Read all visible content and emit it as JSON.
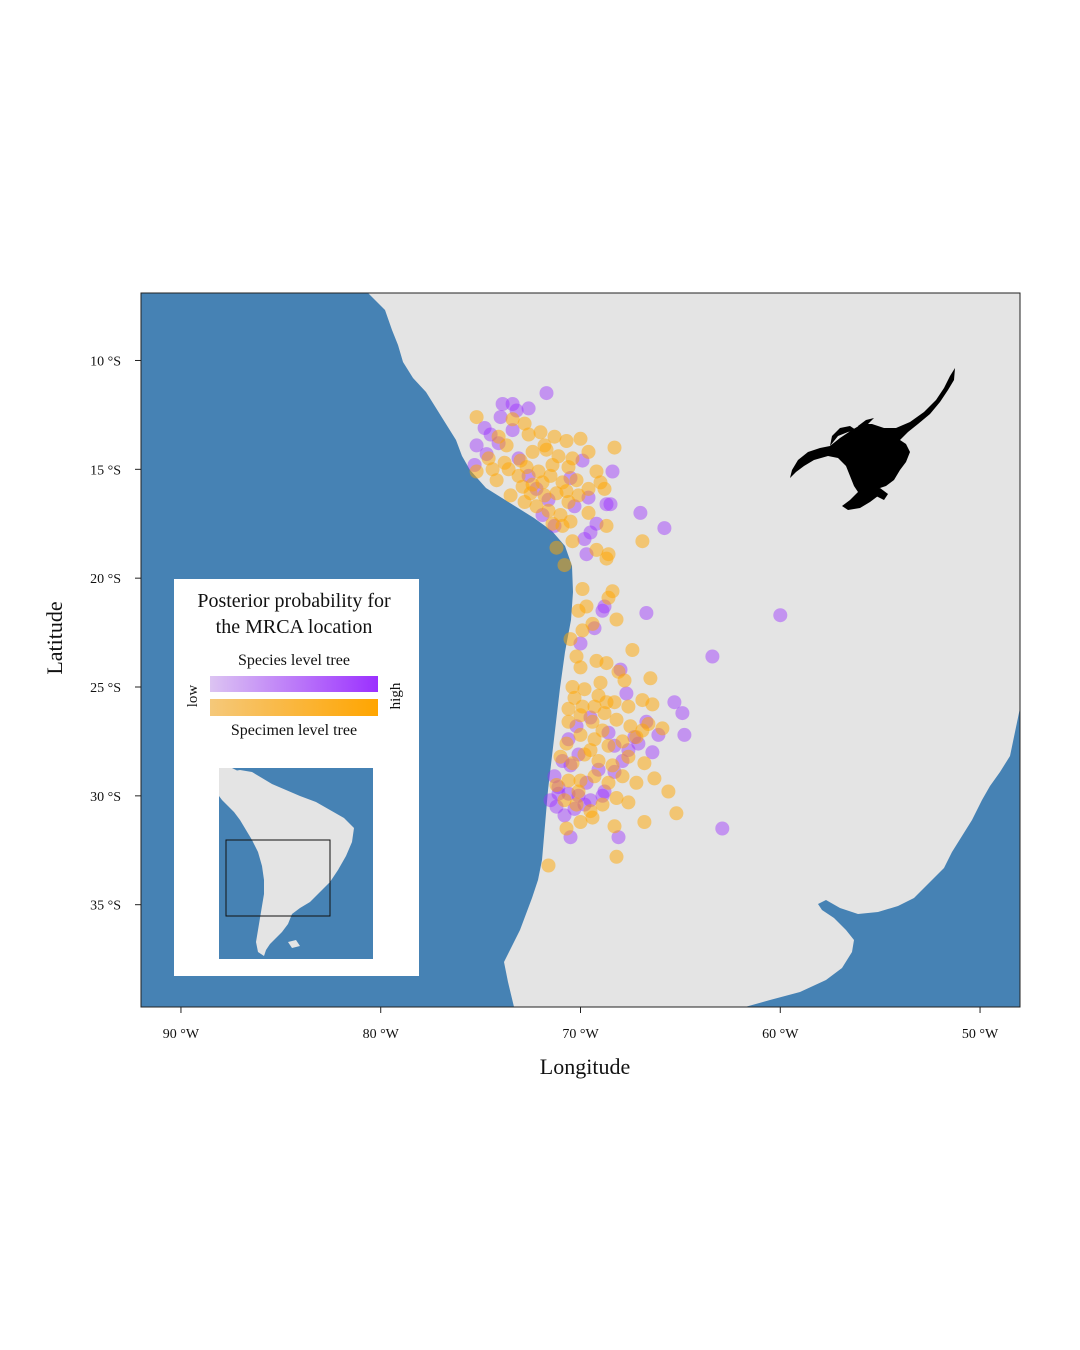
{
  "chart_data": {
    "type": "scatter",
    "title": "",
    "xlabel": "Longitude",
    "ylabel": "Latitude",
    "xlim": [
      -92,
      -48
    ],
    "ylim": [
      -39.7,
      -6.9
    ],
    "x_ticks": [
      -90,
      -80,
      -70,
      -60,
      -50
    ],
    "x_tick_labels": [
      "90 °W",
      "80 °W",
      "70 °W",
      "60 °W",
      "50 °W"
    ],
    "y_ticks": [
      -10,
      -15,
      -20,
      -25,
      -30,
      -35
    ],
    "y_tick_labels": [
      "10 °S",
      "15 °S",
      "20 °S",
      "25 °S",
      "30 °S",
      "35 °S"
    ],
    "grid": false,
    "colors": {
      "ocean": "#4682b4",
      "land": "#e4e4e4",
      "species_low": "#dcc4f2",
      "species_high": "#9b30ff",
      "specimen_low": "#f5c87a",
      "specimen_high": "#ffa500"
    },
    "legend": {
      "position": "bottom-left",
      "title_line1": "Posterior probability for",
      "title_line2": "the MRCA location",
      "species_label": "Species level tree",
      "specimen_label": "Specimen level tree",
      "low_label": "low",
      "high_label": "high"
    },
    "inset": {
      "label": "South America overview",
      "extent_box": {
        "lon": [
          -92,
          -48
        ],
        "lat": [
          -39.7,
          -6.9
        ]
      }
    },
    "silhouette": {
      "icon": "scorpion-icon",
      "color": "#000000"
    },
    "series": [
      {
        "name": "Species level tree",
        "color": "#9b30ff",
        "points": [
          [
            -71.7,
            -11.5
          ],
          [
            -73.4,
            -12.0
          ],
          [
            -73.9,
            -12.0
          ],
          [
            -72.6,
            -12.2
          ],
          [
            -74.8,
            -13.1
          ],
          [
            -74.5,
            -13.4
          ],
          [
            -74.0,
            -12.6
          ],
          [
            -73.2,
            -12.3
          ],
          [
            -75.2,
            -13.9
          ],
          [
            -74.7,
            -14.3
          ],
          [
            -75.3,
            -14.8
          ],
          [
            -73.4,
            -13.2
          ],
          [
            -74.1,
            -13.8
          ],
          [
            -73.1,
            -14.5
          ],
          [
            -72.6,
            -15.3
          ],
          [
            -72.2,
            -15.9
          ],
          [
            -71.6,
            -16.4
          ],
          [
            -71.9,
            -17.1
          ],
          [
            -71.3,
            -17.6
          ],
          [
            -70.5,
            -15.4
          ],
          [
            -70.3,
            -16.7
          ],
          [
            -69.9,
            -14.6
          ],
          [
            -68.7,
            -16.6
          ],
          [
            -69.2,
            -17.5
          ],
          [
            -69.8,
            -18.2
          ],
          [
            -69.5,
            -17.9
          ],
          [
            -69.7,
            -18.9
          ],
          [
            -68.4,
            -15.1
          ],
          [
            -68.5,
            -16.6
          ],
          [
            -69.6,
            -16.3
          ],
          [
            -67.0,
            -17.0
          ],
          [
            -65.8,
            -17.7
          ],
          [
            -60.0,
            -21.7
          ],
          [
            -63.4,
            -23.6
          ],
          [
            -66.7,
            -21.6
          ],
          [
            -68.8,
            -21.3
          ],
          [
            -68.9,
            -21.5
          ],
          [
            -69.3,
            -22.3
          ],
          [
            -70.0,
            -23.0
          ],
          [
            -68.0,
            -24.2
          ],
          [
            -67.7,
            -25.3
          ],
          [
            -65.3,
            -25.7
          ],
          [
            -64.9,
            -26.2
          ],
          [
            -64.8,
            -27.2
          ],
          [
            -66.1,
            -27.2
          ],
          [
            -66.4,
            -28.0
          ],
          [
            -66.7,
            -26.6
          ],
          [
            -67.3,
            -27.3
          ],
          [
            -67.6,
            -27.9
          ],
          [
            -68.3,
            -28.9
          ],
          [
            -68.8,
            -29.8
          ],
          [
            -69.5,
            -30.2
          ],
          [
            -70.1,
            -30.0
          ],
          [
            -70.6,
            -29.9
          ],
          [
            -71.1,
            -29.6
          ],
          [
            -71.3,
            -29.1
          ],
          [
            -70.9,
            -28.4
          ],
          [
            -71.1,
            -29.9
          ],
          [
            -71.5,
            -30.2
          ],
          [
            -70.3,
            -30.6
          ],
          [
            -70.8,
            -30.9
          ],
          [
            -71.2,
            -30.5
          ],
          [
            -70.5,
            -31.9
          ],
          [
            -69.8,
            -30.4
          ],
          [
            -68.9,
            -30.0
          ],
          [
            -68.1,
            -31.9
          ],
          [
            -62.9,
            -31.5
          ],
          [
            -67.1,
            -27.6
          ],
          [
            -67.9,
            -28.4
          ],
          [
            -68.6,
            -27.1
          ],
          [
            -69.5,
            -26.4
          ],
          [
            -70.2,
            -26.8
          ],
          [
            -70.6,
            -27.4
          ],
          [
            -70.5,
            -28.6
          ],
          [
            -69.1,
            -28.8
          ],
          [
            -68.3,
            -27.7
          ],
          [
            -69.7,
            -29.4
          ],
          [
            -70.1,
            -28.1
          ]
        ]
      },
      {
        "name": "Specimen level tree",
        "color": "#ffa500",
        "points": [
          [
            -75.2,
            -12.6
          ],
          [
            -73.4,
            -12.7
          ],
          [
            -72.8,
            -12.9
          ],
          [
            -72.0,
            -13.3
          ],
          [
            -72.6,
            -13.4
          ],
          [
            -74.1,
            -13.5
          ],
          [
            -73.7,
            -13.9
          ],
          [
            -74.6,
            -14.5
          ],
          [
            -75.2,
            -15.1
          ],
          [
            -74.2,
            -15.5
          ],
          [
            -73.6,
            -15.0
          ],
          [
            -73.0,
            -14.6
          ],
          [
            -72.4,
            -14.2
          ],
          [
            -71.7,
            -14.1
          ],
          [
            -71.1,
            -14.4
          ],
          [
            -70.6,
            -14.9
          ],
          [
            -70.2,
            -15.5
          ],
          [
            -70.9,
            -15.6
          ],
          [
            -71.5,
            -15.3
          ],
          [
            -72.1,
            -15.1
          ],
          [
            -72.9,
            -15.8
          ],
          [
            -73.5,
            -16.2
          ],
          [
            -72.8,
            -16.5
          ],
          [
            -72.2,
            -16.7
          ],
          [
            -71.6,
            -16.9
          ],
          [
            -71.0,
            -17.1
          ],
          [
            -70.6,
            -16.5
          ],
          [
            -70.1,
            -16.2
          ],
          [
            -69.6,
            -15.9
          ],
          [
            -69.2,
            -15.1
          ],
          [
            -69.6,
            -14.2
          ],
          [
            -70.0,
            -13.6
          ],
          [
            -70.7,
            -13.7
          ],
          [
            -71.3,
            -13.5
          ],
          [
            -70.5,
            -17.4
          ],
          [
            -70.9,
            -17.6
          ],
          [
            -71.4,
            -17.5
          ],
          [
            -69.0,
            -15.6
          ],
          [
            -68.8,
            -15.9
          ],
          [
            -69.6,
            -17.0
          ],
          [
            -68.3,
            -14.0
          ],
          [
            -68.7,
            -17.6
          ],
          [
            -69.2,
            -18.7
          ],
          [
            -66.9,
            -18.3
          ],
          [
            -68.6,
            -18.9
          ],
          [
            -68.7,
            -19.1
          ],
          [
            -68.4,
            -20.6
          ],
          [
            -69.7,
            -21.3
          ],
          [
            -70.1,
            -21.5
          ],
          [
            -68.2,
            -21.9
          ],
          [
            -69.4,
            -22.1
          ],
          [
            -69.9,
            -22.4
          ],
          [
            -70.5,
            -22.8
          ],
          [
            -70.2,
            -23.6
          ],
          [
            -70.0,
            -24.1
          ],
          [
            -69.2,
            -23.8
          ],
          [
            -68.7,
            -23.9
          ],
          [
            -68.1,
            -24.3
          ],
          [
            -67.8,
            -24.7
          ],
          [
            -66.5,
            -24.6
          ],
          [
            -66.9,
            -25.6
          ],
          [
            -66.4,
            -25.8
          ],
          [
            -67.6,
            -25.9
          ],
          [
            -68.3,
            -25.7
          ],
          [
            -69.1,
            -25.4
          ],
          [
            -69.8,
            -25.1
          ],
          [
            -70.3,
            -25.5
          ],
          [
            -70.6,
            -26.0
          ],
          [
            -70.0,
            -26.3
          ],
          [
            -69.4,
            -26.6
          ],
          [
            -68.8,
            -26.2
          ],
          [
            -68.2,
            -26.5
          ],
          [
            -67.5,
            -26.8
          ],
          [
            -66.9,
            -27.0
          ],
          [
            -66.6,
            -26.7
          ],
          [
            -65.9,
            -26.9
          ],
          [
            -67.2,
            -27.3
          ],
          [
            -67.9,
            -27.5
          ],
          [
            -68.6,
            -27.7
          ],
          [
            -69.3,
            -27.4
          ],
          [
            -70.0,
            -27.2
          ],
          [
            -70.7,
            -27.6
          ],
          [
            -71.0,
            -28.2
          ],
          [
            -70.4,
            -28.5
          ],
          [
            -69.8,
            -28.1
          ],
          [
            -69.1,
            -28.4
          ],
          [
            -68.4,
            -28.6
          ],
          [
            -67.6,
            -28.2
          ],
          [
            -66.8,
            -28.5
          ],
          [
            -66.3,
            -29.2
          ],
          [
            -67.2,
            -29.4
          ],
          [
            -67.9,
            -29.1
          ],
          [
            -68.6,
            -29.4
          ],
          [
            -69.3,
            -29.1
          ],
          [
            -70.0,
            -29.3
          ],
          [
            -70.6,
            -29.3
          ],
          [
            -71.2,
            -29.5
          ],
          [
            -70.8,
            -30.2
          ],
          [
            -70.2,
            -30.4
          ],
          [
            -69.5,
            -30.7
          ],
          [
            -68.9,
            -30.4
          ],
          [
            -68.2,
            -30.1
          ],
          [
            -67.6,
            -30.3
          ],
          [
            -65.6,
            -29.8
          ],
          [
            -65.2,
            -30.8
          ],
          [
            -66.8,
            -31.2
          ],
          [
            -68.3,
            -31.4
          ],
          [
            -69.4,
            -31.0
          ],
          [
            -70.0,
            -31.2
          ],
          [
            -70.7,
            -31.5
          ],
          [
            -71.6,
            -33.2
          ],
          [
            -68.2,
            -32.8
          ],
          [
            -70.4,
            -25.0
          ],
          [
            -69.0,
            -24.8
          ],
          [
            -67.4,
            -23.3
          ],
          [
            -68.6,
            -20.9
          ],
          [
            -69.9,
            -20.5
          ],
          [
            -70.8,
            -19.4
          ],
          [
            -71.2,
            -18.6
          ],
          [
            -70.4,
            -18.3
          ],
          [
            -72.4,
            -15.7
          ],
          [
            -73.1,
            -15.3
          ],
          [
            -72.5,
            -16.1
          ],
          [
            -71.8,
            -16.2
          ],
          [
            -71.2,
            -16.1
          ],
          [
            -70.7,
            -16.0
          ],
          [
            -71.9,
            -15.6
          ],
          [
            -73.8,
            -14.7
          ],
          [
            -74.4,
            -15.0
          ],
          [
            -72.7,
            -14.9
          ],
          [
            -71.4,
            -14.8
          ],
          [
            -70.4,
            -14.5
          ],
          [
            -71.8,
            -13.9
          ],
          [
            -69.9,
            -25.9
          ],
          [
            -69.3,
            -25.9
          ],
          [
            -68.7,
            -25.7
          ],
          [
            -70.6,
            -26.6
          ],
          [
            -69.5,
            -27.9
          ],
          [
            -68.9,
            -27.0
          ],
          [
            -70.1,
            -29.8
          ]
        ]
      }
    ]
  }
}
